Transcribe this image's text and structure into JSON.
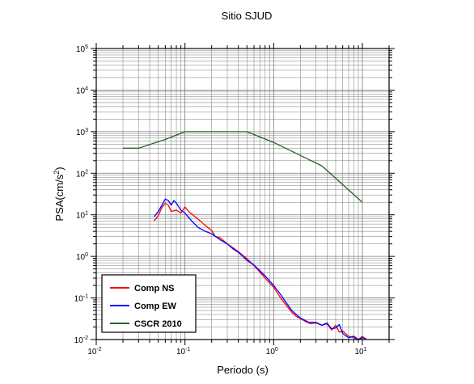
{
  "chart_data": {
    "type": "line",
    "title": "Sitio SJUD",
    "xlabel": "Periodo (s)",
    "ylabel_base": "PSA(cm/s",
    "ylabel_sup": "2",
    "ylabel_end": ")",
    "x_scale": "log",
    "y_scale": "log",
    "xlim": [
      0.01,
      20
    ],
    "ylim": [
      0.01,
      100000
    ],
    "grid": true,
    "legend_position": "bottom-left",
    "x_ticks": [
      {
        "base": "10",
        "exp": "-2",
        "value": 0.01
      },
      {
        "base": "10",
        "exp": "-1",
        "value": 0.1
      },
      {
        "base": "10",
        "exp": "0",
        "value": 1
      },
      {
        "base": "10",
        "exp": "1",
        "value": 10
      }
    ],
    "y_ticks": [
      {
        "base": "10",
        "exp": "-2",
        "value": 0.01
      },
      {
        "base": "10",
        "exp": "-1",
        "value": 0.1
      },
      {
        "base": "10",
        "exp": "0",
        "value": 1
      },
      {
        "base": "10",
        "exp": "1",
        "value": 10
      },
      {
        "base": "10",
        "exp": "2",
        "value": 100
      },
      {
        "base": "10",
        "exp": "3",
        "value": 1000
      },
      {
        "base": "10",
        "exp": "4",
        "value": 10000
      },
      {
        "base": "10",
        "exp": "5",
        "value": 100000
      }
    ],
    "series": [
      {
        "name": "Comp NS",
        "color": "#ff0000",
        "points": [
          [
            0.045,
            7.2
          ],
          [
            0.05,
            9.5
          ],
          [
            0.055,
            15
          ],
          [
            0.06,
            19
          ],
          [
            0.065,
            17
          ],
          [
            0.07,
            12
          ],
          [
            0.08,
            13
          ],
          [
            0.09,
            11
          ],
          [
            0.1,
            15.5
          ],
          [
            0.11,
            12
          ],
          [
            0.13,
            9
          ],
          [
            0.15,
            7
          ],
          [
            0.17,
            5.5
          ],
          [
            0.2,
            4.2
          ],
          [
            0.22,
            3
          ],
          [
            0.25,
            2.8
          ],
          [
            0.3,
            2
          ],
          [
            0.35,
            1.6
          ],
          [
            0.4,
            1.3
          ],
          [
            0.45,
            1.05
          ],
          [
            0.5,
            0.88
          ],
          [
            0.6,
            0.6
          ],
          [
            0.7,
            0.42
          ],
          [
            0.8,
            0.3
          ],
          [
            1.0,
            0.18
          ],
          [
            1.2,
            0.1
          ],
          [
            1.4,
            0.065
          ],
          [
            1.6,
            0.045
          ],
          [
            1.8,
            0.036
          ],
          [
            2.0,
            0.032
          ],
          [
            2.3,
            0.027
          ],
          [
            2.6,
            0.024
          ],
          [
            3.0,
            0.025
          ],
          [
            3.5,
            0.022
          ],
          [
            4.0,
            0.024
          ],
          [
            4.5,
            0.017
          ],
          [
            5.0,
            0.022
          ],
          [
            5.5,
            0.015
          ],
          [
            6.0,
            0.016
          ],
          [
            7.0,
            0.012
          ],
          [
            8.0,
            0.011
          ],
          [
            9.0,
            0.01
          ],
          [
            10.0,
            0.012
          ],
          [
            11.0,
            0.01
          ]
        ]
      },
      {
        "name": "Comp EW",
        "color": "#0000ff",
        "points": [
          [
            0.045,
            9
          ],
          [
            0.05,
            12
          ],
          [
            0.055,
            17
          ],
          [
            0.06,
            24
          ],
          [
            0.065,
            22
          ],
          [
            0.07,
            17
          ],
          [
            0.075,
            22
          ],
          [
            0.08,
            19
          ],
          [
            0.09,
            13
          ],
          [
            0.1,
            11
          ],
          [
            0.12,
            7
          ],
          [
            0.14,
            5
          ],
          [
            0.17,
            4
          ],
          [
            0.2,
            3.5
          ],
          [
            0.25,
            2.5
          ],
          [
            0.3,
            2
          ],
          [
            0.35,
            1.5
          ],
          [
            0.4,
            1.25
          ],
          [
            0.45,
            1.0
          ],
          [
            0.5,
            0.8
          ],
          [
            0.6,
            0.62
          ],
          [
            0.7,
            0.45
          ],
          [
            0.8,
            0.34
          ],
          [
            1.0,
            0.2
          ],
          [
            1.2,
            0.12
          ],
          [
            1.4,
            0.075
          ],
          [
            1.6,
            0.05
          ],
          [
            1.8,
            0.04
          ],
          [
            2.0,
            0.033
          ],
          [
            2.5,
            0.026
          ],
          [
            3.0,
            0.026
          ],
          [
            3.5,
            0.022
          ],
          [
            4.0,
            0.025
          ],
          [
            4.5,
            0.018
          ],
          [
            5.0,
            0.019
          ],
          [
            5.5,
            0.023
          ],
          [
            6.0,
            0.014
          ],
          [
            7.0,
            0.011
          ],
          [
            8.0,
            0.012
          ],
          [
            9.0,
            0.01
          ],
          [
            10.0,
            0.011
          ],
          [
            11.0,
            0.0105
          ]
        ]
      },
      {
        "name": "CSCR 2010",
        "color": "#226622",
        "points": [
          [
            0.02,
            400
          ],
          [
            0.03,
            400
          ],
          [
            0.06,
            650
          ],
          [
            0.1,
            1000
          ],
          [
            0.2,
            1000
          ],
          [
            0.5,
            1000
          ],
          [
            1.0,
            550
          ],
          [
            3.5,
            150
          ],
          [
            10.0,
            20
          ]
        ]
      }
    ]
  }
}
